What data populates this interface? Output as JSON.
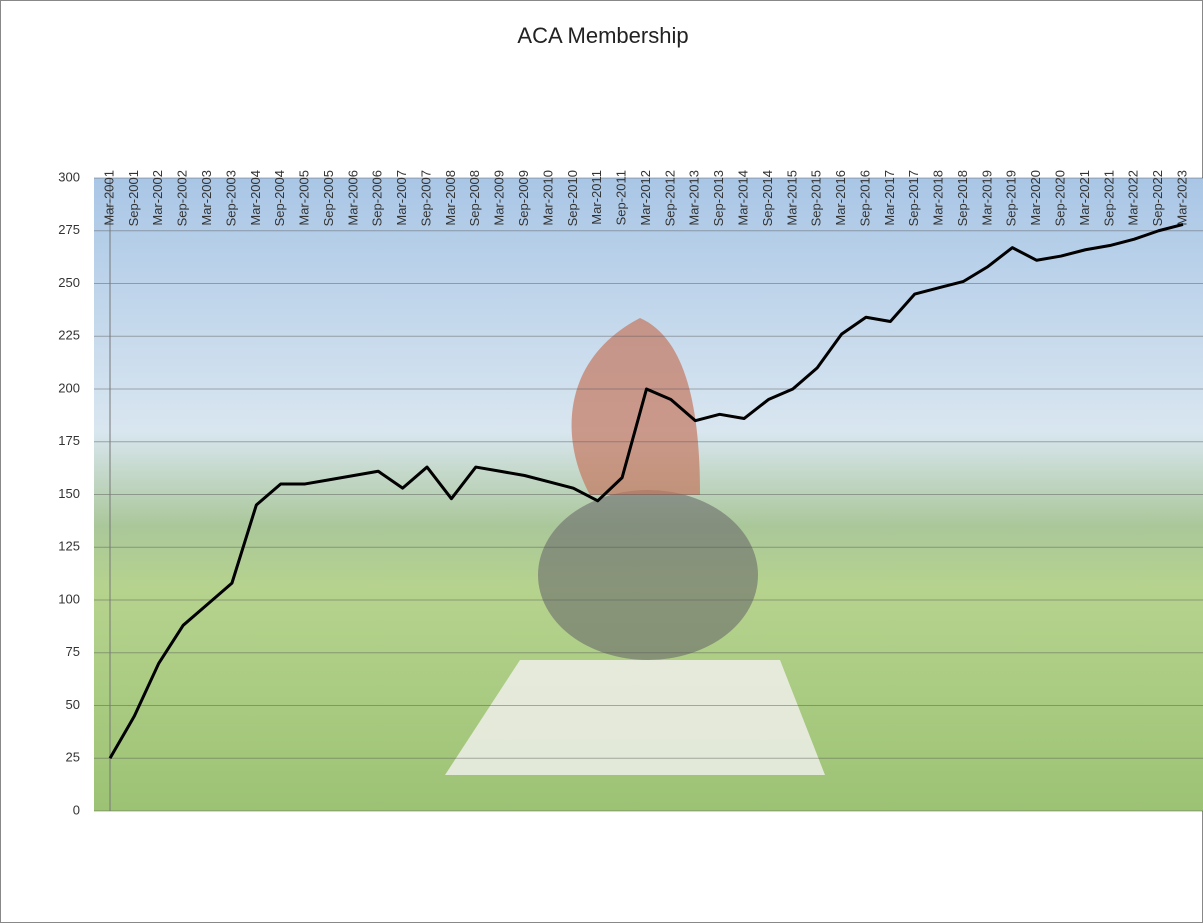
{
  "chart_data": {
    "type": "line",
    "title": "ACA Membership",
    "categories": [
      "Mar-2001",
      "Sep-2001",
      "Mar-2002",
      "Sep-2002",
      "Mar-2003",
      "Sep-2003",
      "Mar-2004",
      "Sep-2004",
      "Mar-2005",
      "Sep-2005",
      "Mar-2006",
      "Sep-2006",
      "Mar-2007",
      "Sep-2007",
      "Mar-2008",
      "Sep-2008",
      "Mar-2009",
      "Sep-2009",
      "Mar-2010",
      "Sep-2010",
      "Mar-2011",
      "Sep-2011",
      "Mar-2012",
      "Sep-2012",
      "Mar-2013",
      "Sep-2013",
      "Mar-2014",
      "Sep-2014",
      "Mar-2015",
      "Sep-2015",
      "Mar-2016",
      "Sep-2016",
      "Mar-2017",
      "Sep-2017",
      "Mar-2018",
      "Sep-2018",
      "Mar-2019",
      "Sep-2019",
      "Mar-2020",
      "Sep-2020",
      "Mar-2021",
      "Sep-2021",
      "Mar-2022",
      "Sep-2022",
      "Mar-2023"
    ],
    "values": [
      25,
      45,
      70,
      88,
      98,
      108,
      145,
      155,
      155,
      157,
      159,
      161,
      153,
      163,
      148,
      163,
      161,
      159,
      156,
      153,
      147,
      158,
      200,
      195,
      185,
      188,
      186,
      195,
      200,
      210,
      226,
      234,
      232,
      245,
      248,
      251,
      258,
      267,
      261,
      263,
      266,
      268,
      271,
      275,
      278
    ],
    "color": "#000000",
    "ylim": [
      0,
      300
    ],
    "yticks": [
      0,
      25,
      50,
      75,
      100,
      125,
      150,
      175,
      200,
      225,
      250,
      275,
      300
    ],
    "grid": true
  }
}
